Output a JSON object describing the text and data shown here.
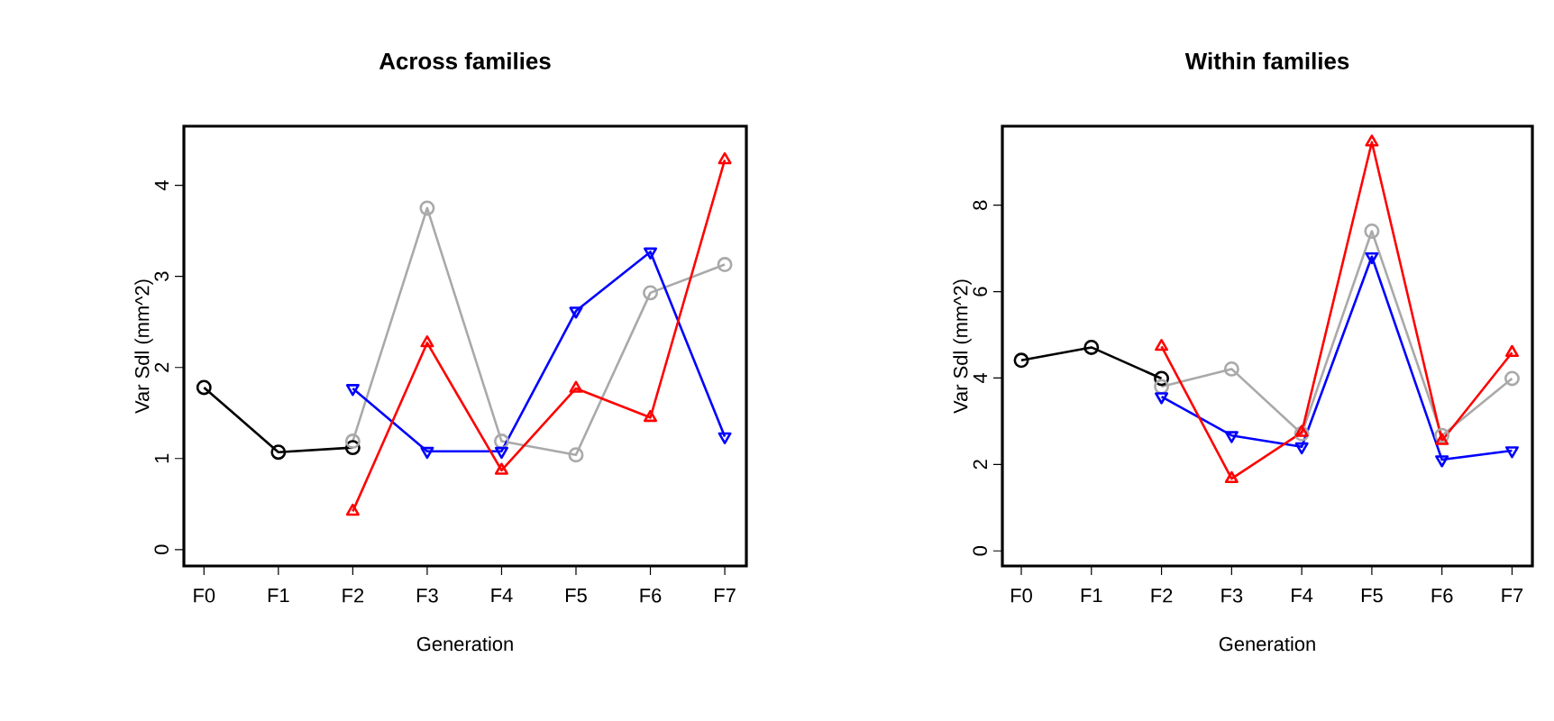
{
  "chart_data": [
    {
      "type": "line",
      "title": "Across families",
      "xlabel": "Generation",
      "ylabel": "Var Sdl (mm^2)",
      "categories": [
        "F0",
        "F1",
        "F2",
        "F3",
        "F4",
        "F5",
        "F6",
        "F7"
      ],
      "series": [
        {
          "color": "#000000",
          "marker": "circle",
          "values": [
            1.78,
            1.07,
            1.12,
            null,
            null,
            null,
            null,
            null
          ]
        },
        {
          "color": "#a9a9a9",
          "marker": "circle",
          "values": [
            null,
            null,
            1.19,
            3.75,
            1.19,
            1.04,
            2.82,
            3.13
          ]
        },
        {
          "color": "#0000ff",
          "marker": "triangle down",
          "values": [
            null,
            null,
            1.77,
            1.08,
            1.08,
            2.62,
            3.27,
            1.24
          ]
        },
        {
          "color": "#ff0000",
          "marker": "triangle",
          "values": [
            null,
            null,
            0.42,
            2.27,
            0.87,
            1.77,
            1.45,
            4.28
          ]
        }
      ],
      "ylim": [
        -0.18,
        4.65
      ],
      "yticks": [
        0,
        1,
        2,
        3,
        4
      ],
      "grid": false,
      "line_style": "solid"
    },
    {
      "type": "line",
      "title": "Within families",
      "xlabel": "Generation",
      "ylabel": "Var Sdl (mm^2)",
      "categories": [
        "F0",
        "F1",
        "F2",
        "F3",
        "F4",
        "F5",
        "F6",
        "F7"
      ],
      "series": [
        {
          "color": "#000000",
          "marker": "circle",
          "values": [
            4.41,
            4.71,
            3.99,
            null,
            null,
            null,
            null,
            null
          ]
        },
        {
          "color": "#a9a9a9",
          "marker": "circle",
          "values": [
            null,
            null,
            3.8,
            4.21,
            2.71,
            7.4,
            2.67,
            3.99
          ]
        },
        {
          "color": "#0000ff",
          "marker": "triangle down",
          "values": [
            null,
            null,
            3.57,
            2.67,
            2.41,
            6.81,
            2.11,
            2.32
          ]
        },
        {
          "color": "#ff0000",
          "marker": "triangle",
          "values": [
            null,
            null,
            4.73,
            1.67,
            2.74,
            9.46,
            2.55,
            4.59
          ]
        }
      ],
      "ylim": [
        -0.35,
        9.83
      ],
      "yticks": [
        0,
        2,
        4,
        6,
        8
      ],
      "grid": false,
      "line_style": "solid"
    }
  ]
}
